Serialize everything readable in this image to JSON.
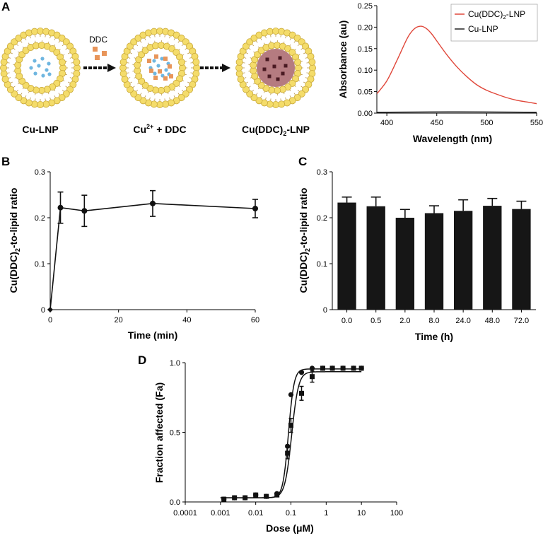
{
  "panel_labels": {
    "a": "A",
    "b": "B",
    "c": "C",
    "d": "D"
  },
  "schematic": {
    "step1_label": "Cu-LNP",
    "step2_label_base": "Cu",
    "step2_label_sup": "2+",
    "step2_label_rest": " + DDC",
    "step3_label_pre": "Cu(DDC)",
    "step3_label_sub": "2",
    "step3_label_post": "-LNP",
    "reagent_label": "DDC",
    "colors": {
      "lipid_head": "#f4dc6a",
      "copper_dot": "#6fb6e0",
      "ddc": "#e8955a",
      "complex_core": "#b57b80",
      "complex_dot": "#4a1a22"
    }
  },
  "chart_data": [
    {
      "id": "A",
      "type": "line",
      "title": "",
      "xlabel": "Wavelength (nm)",
      "ylabel": "Absorbance (au)",
      "xlim": [
        390,
        550
      ],
      "ylim": [
        0,
        0.25
      ],
      "xticks": [
        "400",
        "450",
        "500",
        "550"
      ],
      "yticks": [
        "0.00",
        "0.05",
        "0.10",
        "0.15",
        "0.20",
        "0.25"
      ],
      "legend_position": "top-right",
      "series": [
        {
          "name_base": "Cu(DDC)",
          "name_sub": "2",
          "name_rest": "-LNP",
          "color": "#e0473a",
          "x": [
            390,
            400,
            410,
            420,
            425,
            430,
            435,
            440,
            445,
            450,
            460,
            470,
            480,
            490,
            500,
            510,
            520,
            530,
            540,
            550
          ],
          "y": [
            0.045,
            0.075,
            0.122,
            0.172,
            0.19,
            0.2,
            0.202,
            0.196,
            0.184,
            0.168,
            0.136,
            0.108,
            0.085,
            0.066,
            0.053,
            0.044,
            0.036,
            0.03,
            0.026,
            0.022
          ]
        },
        {
          "name": "Cu-LNP",
          "color": "#222222",
          "x": [
            390,
            430,
            470,
            510,
            550
          ],
          "y": [
            0.002,
            0.0025,
            0.003,
            0.0025,
            0.002
          ]
        }
      ]
    },
    {
      "id": "B",
      "type": "line",
      "title": "",
      "xlabel": "Time (min)",
      "ylabel_base": "Cu(DDC)",
      "ylabel_sub": "2",
      "ylabel_rest": "-to-lipid ratio",
      "xlim": [
        0,
        60
      ],
      "ylim": [
        0,
        0.3
      ],
      "xticks": [
        "0",
        "20",
        "40",
        "60"
      ],
      "yticks": [
        "0",
        "0.1",
        "0.2",
        "0.3"
      ],
      "x": [
        0,
        3,
        10,
        30,
        60
      ],
      "y": [
        0,
        0.222,
        0.215,
        0.231,
        0.22
      ],
      "err": [
        0,
        0.034,
        0.034,
        0.028,
        0.02
      ]
    },
    {
      "id": "C",
      "type": "bar",
      "title": "",
      "xlabel": "Time (h)",
      "ylabel_base": "Cu(DDC)",
      "ylabel_sub": "2",
      "ylabel_rest": "-to-lipid ratio",
      "ylim": [
        0,
        0.3
      ],
      "yticks": [
        "0",
        "0.1",
        "0.2",
        "0.3"
      ],
      "categories": [
        "0.0",
        "0.5",
        "2.0",
        "8.0",
        "24.0",
        "48.0",
        "72.0"
      ],
      "values": [
        0.233,
        0.225,
        0.2,
        0.21,
        0.215,
        0.226,
        0.219
      ],
      "err": [
        0.012,
        0.02,
        0.018,
        0.016,
        0.024,
        0.016,
        0.017
      ]
    },
    {
      "id": "D",
      "type": "scatter",
      "title": "",
      "xlabel": "Dose (μM)",
      "ylabel": "Fraction affected (Fa)",
      "xscale": "log",
      "xlim": [
        0.0001,
        100
      ],
      "ylim": [
        0,
        1.0
      ],
      "xticks": [
        "0.0001",
        "0.001",
        "0.01",
        "0.1",
        "1",
        "10",
        "100"
      ],
      "yticks": [
        "0.0",
        "0.5",
        "1.0"
      ],
      "series": [
        {
          "name": "circles",
          "marker": "circle",
          "x": [
            0.00125,
            0.0025,
            0.005,
            0.01,
            0.02,
            0.04,
            0.08,
            0.1,
            0.2,
            0.4,
            0.8,
            1.5,
            3,
            6,
            10
          ],
          "y": [
            0.02,
            0.03,
            0.03,
            0.05,
            0.04,
            0.06,
            0.4,
            0.77,
            0.93,
            0.96,
            0.96,
            0.96,
            0.96,
            0.96,
            0.96
          ]
        },
        {
          "name": "squares",
          "marker": "square",
          "x": [
            0.00125,
            0.0025,
            0.005,
            0.01,
            0.02,
            0.04,
            0.08,
            0.1,
            0.2,
            0.4,
            0.8,
            1.5,
            3,
            6,
            10
          ],
          "y": [
            0.02,
            0.03,
            0.03,
            0.05,
            0.04,
            0.05,
            0.35,
            0.55,
            0.78,
            0.9,
            0.96,
            0.96,
            0.96,
            0.96,
            0.96
          ]
        }
      ],
      "fits": [
        {
          "name": "fit-1",
          "bottom": 0.03,
          "top": 0.955,
          "ec50": 0.085,
          "hill": 5.5
        },
        {
          "name": "fit-2",
          "bottom": 0.03,
          "top": 0.935,
          "ec50": 0.105,
          "hill": 4.5
        }
      ]
    }
  ]
}
